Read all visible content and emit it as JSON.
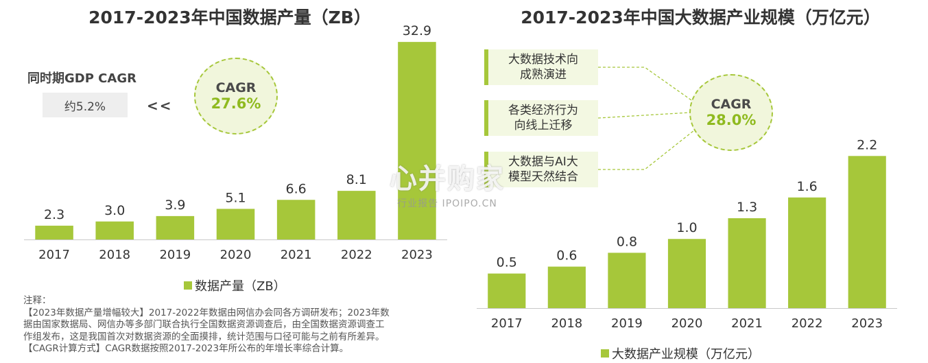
{
  "chart_data": [
    {
      "type": "bar",
      "title": "2017-2023年中国数据产量（ZB）",
      "categories": [
        "2017",
        "2018",
        "2019",
        "2020",
        "2021",
        "2022",
        "2023"
      ],
      "series": [
        {
          "name": "数据产量（ZB）",
          "values": [
            2.3,
            3.0,
            3.9,
            5.1,
            6.6,
            8.1,
            32.9
          ]
        }
      ],
      "value_labels": [
        "2.3",
        "3.0",
        "3.9",
        "5.1",
        "6.6",
        "8.1",
        "32.9"
      ],
      "ylim": [
        0,
        36
      ],
      "grid": false,
      "legend": "bottom",
      "color": "#a6c73a",
      "annotations": {
        "cagr_label": "CAGR",
        "cagr_value": "27.6%",
        "gdp_label": "同时期GDP CAGR",
        "gdp_value": "约5.2%",
        "compare_sign": "<<"
      }
    },
    {
      "type": "bar",
      "title": "2017-2023年中国大数据产业规模（万亿元）",
      "categories": [
        "2017",
        "2018",
        "2019",
        "2020",
        "2021",
        "2022",
        "2023"
      ],
      "series": [
        {
          "name": "大数据产业规模（万亿元）",
          "values": [
            0.5,
            0.6,
            0.8,
            1.0,
            1.3,
            1.6,
            2.2
          ]
        }
      ],
      "value_labels": [
        "0.5",
        "0.6",
        "0.8",
        "1.0",
        "1.3",
        "1.6",
        "2.2"
      ],
      "ylim": [
        0,
        2.6
      ],
      "grid": false,
      "legend": "bottom",
      "color": "#a6c73a",
      "annotations": {
        "cagr_label": "CAGR",
        "cagr_value": "28.0%",
        "drivers": [
          "大数据技术向成熟演进",
          "各类经济行为向线上迁移",
          "大数据与AI大模型天然结合"
        ]
      }
    }
  ],
  "drivers_display": [
    [
      "大数据技术向",
      "成熟演进"
    ],
    [
      "各类经济行为",
      "向线上迁移"
    ],
    [
      "大数据与AI大",
      "模型天然结合"
    ]
  ],
  "notes": [
    "注释：",
    "【2023年数据产量增幅较大】2017-2022年数据由网信办会同各方调研发布；2023年数",
    "据由国家数据局、网信办等多部门联合执行全国数据资源调查后，由全国数据资源调查工",
    "作组发布，这是我国首次对数据资源的全面摸排，统计范围与口径可能与之前有所差异。",
    "【CAGR计算方式】CAGR数据按照2017-2023年所公布的年增长率综合计算。"
  ],
  "watermark": {
    "main": "心并购家",
    "sub": "行业报告 IPOIPO.CN"
  }
}
